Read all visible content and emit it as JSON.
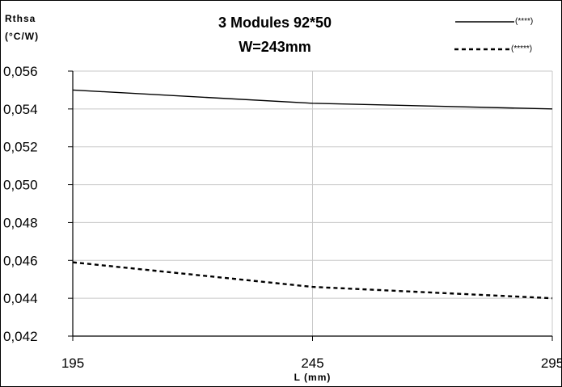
{
  "chart_data": {
    "type": "line",
    "title": [
      "3 Modules 92*50",
      "W=243mm"
    ],
    "ylabel": [
      "Rthsa",
      "(°C/W)"
    ],
    "xlabel": "L (mm)",
    "x": [
      195,
      245,
      295
    ],
    "xlim": [
      195,
      295
    ],
    "ylim": [
      0.042,
      0.056
    ],
    "xticks": [
      "195",
      "245",
      "295"
    ],
    "yticks": [
      "0,042",
      "0,044",
      "0,046",
      "0,048",
      "0,050",
      "0,052",
      "0,054",
      "0,056"
    ],
    "grid": "horizontal and vertical",
    "legend_position": "top-right",
    "series": [
      {
        "name": "(****)",
        "style": "solid",
        "values": [
          0.055,
          0.0543,
          0.054
        ]
      },
      {
        "name": "(*****)",
        "style": "dashed",
        "values": [
          0.0459,
          0.0446,
          0.044
        ]
      }
    ]
  }
}
